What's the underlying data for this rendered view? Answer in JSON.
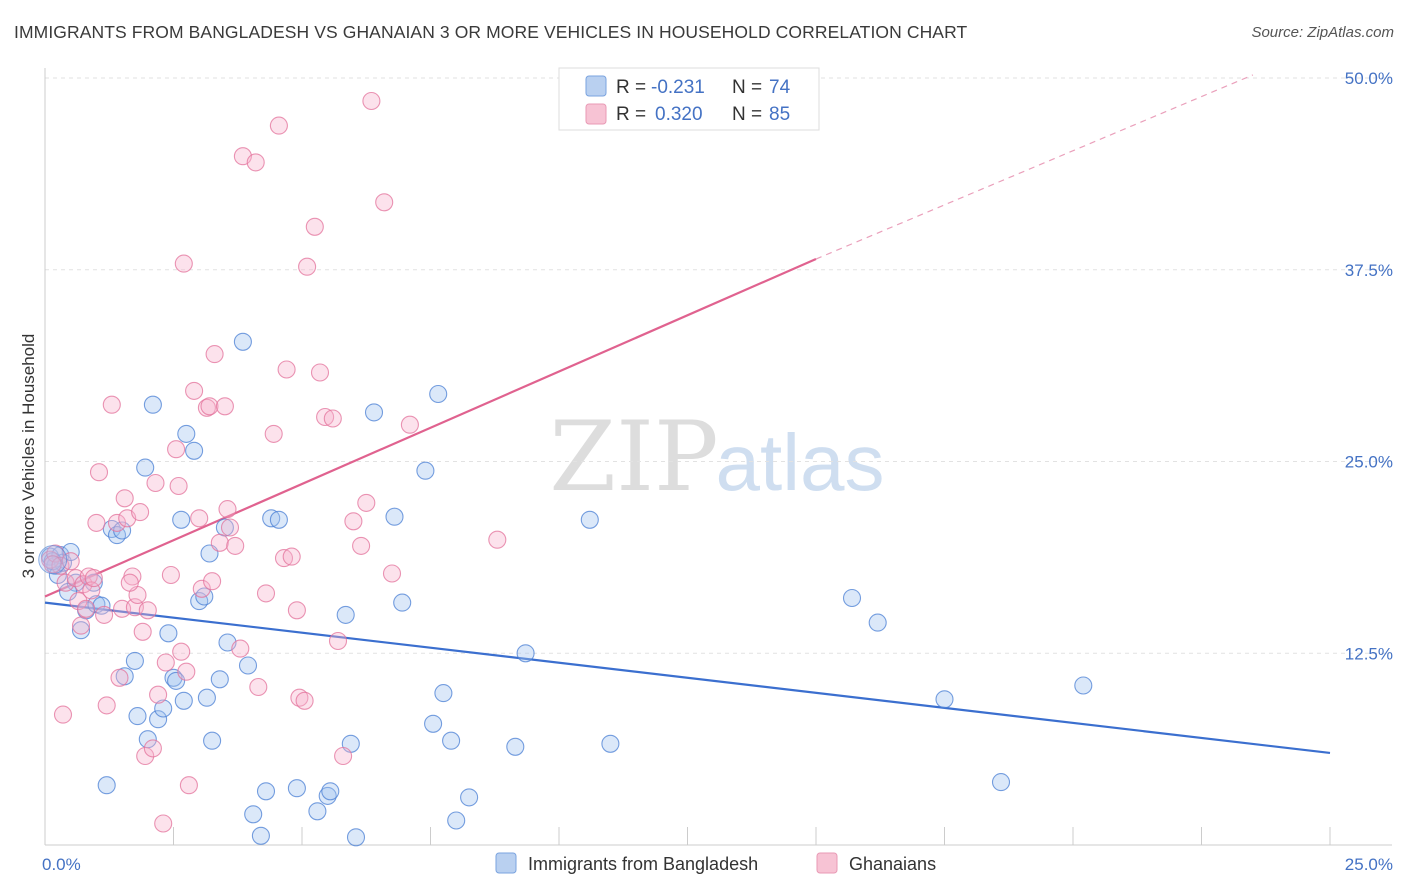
{
  "header": {
    "title": "IMMIGRANTS FROM BANGLADESH VS GHANAIAN 3 OR MORE VEHICLES IN HOUSEHOLD CORRELATION CHART",
    "source": "Source: ZipAtlas.com"
  },
  "watermark": {
    "zip": "ZIP",
    "atlas": "atlas"
  },
  "legend_box": {
    "rows": [
      {
        "r_label": "R =",
        "r_value": "-0.231",
        "n_label": "N =",
        "n_value": "74"
      },
      {
        "r_label": "R =",
        "r_value": "0.320",
        "n_label": "N =",
        "n_value": "85"
      }
    ]
  },
  "chart_data": {
    "type": "scatter",
    "title": "IMMIGRANTS FROM BANGLADESH VS GHANAIAN 3 OR MORE VEHICLES IN HOUSEHOLD CORRELATION CHART",
    "xlabel": "",
    "ylabel": "3 or more Vehicles in Household",
    "xlim": [
      0,
      25
    ],
    "ylim": [
      0,
      50
    ],
    "x_tick_labels": [
      "0.0%",
      "25.0%"
    ],
    "y_ticks": [
      12.5,
      25.0,
      37.5,
      50.0
    ],
    "y_tick_labels": [
      "12.5%",
      "25.0%",
      "37.5%",
      "50.0%"
    ],
    "grid": true,
    "legend_position": "bottom",
    "colors": {
      "blue": "#4a7fd4",
      "pink": "#e3719b"
    },
    "series": [
      {
        "name": "Immigrants from Bangladesh",
        "color": "#4a7fd4",
        "r": -0.231,
        "n": 74,
        "trend": {
          "x": [
            0,
            25
          ],
          "y": [
            15.8,
            6.0
          ]
        },
        "points": [
          [
            0.1,
            18.8
          ],
          [
            0.2,
            18.2
          ],
          [
            0.25,
            17.6
          ],
          [
            0.3,
            18.9
          ],
          [
            0.35,
            18.4
          ],
          [
            0.5,
            19.1
          ],
          [
            0.6,
            17.1
          ],
          [
            0.45,
            16.5
          ],
          [
            0.7,
            14.0
          ],
          [
            0.8,
            15.3
          ],
          [
            1.0,
            15.7
          ],
          [
            0.95,
            17.1
          ],
          [
            1.1,
            15.6
          ],
          [
            1.2,
            3.9
          ],
          [
            1.3,
            20.6
          ],
          [
            1.4,
            20.2
          ],
          [
            1.5,
            20.5
          ],
          [
            1.55,
            11.0
          ],
          [
            1.75,
            12.0
          ],
          [
            1.8,
            8.4
          ],
          [
            1.95,
            24.6
          ],
          [
            2.0,
            6.9
          ],
          [
            2.1,
            28.7
          ],
          [
            2.2,
            8.2
          ],
          [
            2.3,
            8.9
          ],
          [
            2.4,
            13.8
          ],
          [
            2.5,
            10.9
          ],
          [
            2.55,
            10.7
          ],
          [
            2.65,
            21.2
          ],
          [
            2.7,
            9.4
          ],
          [
            2.75,
            26.8
          ],
          [
            2.9,
            25.7
          ],
          [
            3.0,
            15.9
          ],
          [
            3.1,
            16.2
          ],
          [
            3.15,
            9.6
          ],
          [
            3.2,
            19.0
          ],
          [
            3.25,
            6.8
          ],
          [
            3.4,
            10.8
          ],
          [
            3.5,
            20.7
          ],
          [
            3.55,
            13.2
          ],
          [
            3.85,
            32.8
          ],
          [
            3.95,
            11.7
          ],
          [
            4.05,
            2.0
          ],
          [
            4.2,
            0.6
          ],
          [
            4.3,
            3.5
          ],
          [
            4.4,
            21.3
          ],
          [
            4.55,
            21.2
          ],
          [
            4.9,
            3.7
          ],
          [
            5.3,
            2.2
          ],
          [
            5.5,
            3.2
          ],
          [
            5.55,
            3.5
          ],
          [
            5.85,
            15.0
          ],
          [
            5.95,
            6.6
          ],
          [
            6.05,
            0.5
          ],
          [
            6.4,
            28.2
          ],
          [
            6.8,
            21.4
          ],
          [
            6.95,
            15.8
          ],
          [
            7.4,
            24.4
          ],
          [
            7.55,
            7.9
          ],
          [
            7.65,
            29.4
          ],
          [
            7.75,
            9.9
          ],
          [
            7.9,
            6.8
          ],
          [
            8.0,
            1.6
          ],
          [
            8.25,
            3.1
          ],
          [
            9.15,
            6.4
          ],
          [
            9.35,
            12.5
          ],
          [
            10.6,
            21.2
          ],
          [
            11.0,
            6.6
          ],
          [
            15.7,
            16.1
          ],
          [
            16.2,
            14.5
          ],
          [
            17.5,
            9.5
          ],
          [
            18.6,
            4.1
          ],
          [
            20.2,
            10.4
          ],
          [
            0.15,
            18.5
          ]
        ]
      },
      {
        "name": "Ghanaians",
        "color": "#e3719b",
        "r": 0.32,
        "n": 85,
        "trend": {
          "x": [
            0,
            15
          ],
          "y": [
            16.2,
            38.2
          ]
        },
        "trend_extension": {
          "x": [
            15,
            23.5
          ],
          "y": [
            38.2,
            50.2
          ]
        },
        "points": [
          [
            0.1,
            18.6
          ],
          [
            0.2,
            19.0
          ],
          [
            0.3,
            18.2
          ],
          [
            0.35,
            8.5
          ],
          [
            0.4,
            17.1
          ],
          [
            0.5,
            18.5
          ],
          [
            0.6,
            17.4
          ],
          [
            0.65,
            15.9
          ],
          [
            0.7,
            14.3
          ],
          [
            0.75,
            17.0
          ],
          [
            0.8,
            15.4
          ],
          [
            0.85,
            17.5
          ],
          [
            0.9,
            16.6
          ],
          [
            0.95,
            17.4
          ],
          [
            1.0,
            21.0
          ],
          [
            1.05,
            24.3
          ],
          [
            1.15,
            15.0
          ],
          [
            1.2,
            9.1
          ],
          [
            1.3,
            28.7
          ],
          [
            1.4,
            21.0
          ],
          [
            1.45,
            10.9
          ],
          [
            1.5,
            15.4
          ],
          [
            1.55,
            22.6
          ],
          [
            1.6,
            21.3
          ],
          [
            1.7,
            17.5
          ],
          [
            1.75,
            15.5
          ],
          [
            1.8,
            16.3
          ],
          [
            1.85,
            21.7
          ],
          [
            1.9,
            13.9
          ],
          [
            1.95,
            5.8
          ],
          [
            2.0,
            15.3
          ],
          [
            2.1,
            6.3
          ],
          [
            2.15,
            23.6
          ],
          [
            2.2,
            9.8
          ],
          [
            2.3,
            1.4
          ],
          [
            2.35,
            11.9
          ],
          [
            2.45,
            17.6
          ],
          [
            2.55,
            25.8
          ],
          [
            2.6,
            23.4
          ],
          [
            2.65,
            12.6
          ],
          [
            2.7,
            37.9
          ],
          [
            2.75,
            11.3
          ],
          [
            2.8,
            3.9
          ],
          [
            2.9,
            29.6
          ],
          [
            3.0,
            21.3
          ],
          [
            3.05,
            16.7
          ],
          [
            3.15,
            28.5
          ],
          [
            3.2,
            28.6
          ],
          [
            3.25,
            17.2
          ],
          [
            3.3,
            32.0
          ],
          [
            3.4,
            19.7
          ],
          [
            3.5,
            28.6
          ],
          [
            3.55,
            21.9
          ],
          [
            3.6,
            20.7
          ],
          [
            3.7,
            19.5
          ],
          [
            3.8,
            12.8
          ],
          [
            3.85,
            44.9
          ],
          [
            4.1,
            44.5
          ],
          [
            4.15,
            10.3
          ],
          [
            4.3,
            16.4
          ],
          [
            4.45,
            26.8
          ],
          [
            4.55,
            46.9
          ],
          [
            4.65,
            18.7
          ],
          [
            4.7,
            31.0
          ],
          [
            4.8,
            18.8
          ],
          [
            4.9,
            15.3
          ],
          [
            4.95,
            9.6
          ],
          [
            5.05,
            9.4
          ],
          [
            5.1,
            37.7
          ],
          [
            5.25,
            40.3
          ],
          [
            5.35,
            30.8
          ],
          [
            5.45,
            27.9
          ],
          [
            5.6,
            27.8
          ],
          [
            5.7,
            13.3
          ],
          [
            5.8,
            5.8
          ],
          [
            6.0,
            21.1
          ],
          [
            6.15,
            19.5
          ],
          [
            6.25,
            22.3
          ],
          [
            6.35,
            48.5
          ],
          [
            6.6,
            41.9
          ],
          [
            6.75,
            17.7
          ],
          [
            7.1,
            27.4
          ],
          [
            8.8,
            19.9
          ],
          [
            0.15,
            18.3
          ],
          [
            1.65,
            17.1
          ]
        ]
      }
    ]
  }
}
